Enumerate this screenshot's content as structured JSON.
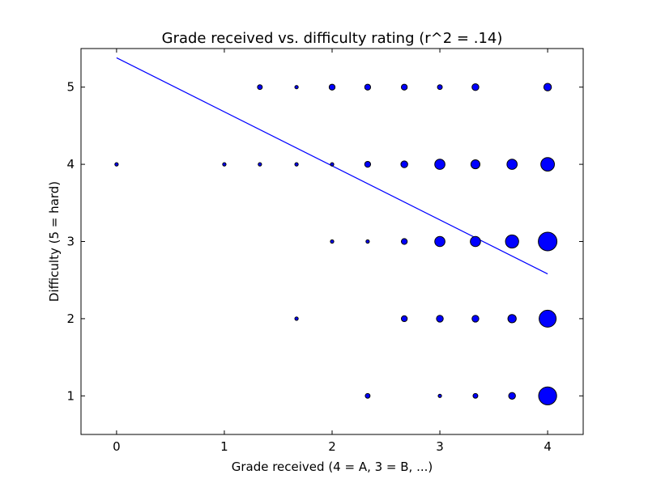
{
  "chart_data": {
    "type": "scatter",
    "title": "Grade received vs. difficulty rating (r^2 = .14)",
    "xlabel": "Grade received (4 = A, 3 = B, ...)",
    "ylabel": "Difficulty (5 = hard)",
    "xlim": [
      -0.33,
      4.33
    ],
    "ylim": [
      0.5,
      5.5
    ],
    "xticks": [
      0,
      1,
      2,
      3,
      4
    ],
    "yticks": [
      1,
      2,
      3,
      4,
      5
    ],
    "grid": false,
    "marker_color": "#0000ff",
    "line_color": "#0000ff",
    "points": [
      {
        "x": 1.33,
        "y": 5,
        "size": 2
      },
      {
        "x": 1.67,
        "y": 5,
        "size": 1
      },
      {
        "x": 2.0,
        "y": 5,
        "size": 3
      },
      {
        "x": 2.33,
        "y": 5,
        "size": 3
      },
      {
        "x": 2.67,
        "y": 5,
        "size": 3
      },
      {
        "x": 3.0,
        "y": 5,
        "size": 2
      },
      {
        "x": 3.33,
        "y": 5,
        "size": 4
      },
      {
        "x": 4.0,
        "y": 5,
        "size": 5
      },
      {
        "x": 0.0,
        "y": 4,
        "size": 1
      },
      {
        "x": 1.0,
        "y": 4,
        "size": 1
      },
      {
        "x": 1.33,
        "y": 4,
        "size": 1
      },
      {
        "x": 1.67,
        "y": 4,
        "size": 1
      },
      {
        "x": 2.0,
        "y": 4,
        "size": 1
      },
      {
        "x": 2.33,
        "y": 4,
        "size": 3
      },
      {
        "x": 2.67,
        "y": 4,
        "size": 4
      },
      {
        "x": 3.0,
        "y": 4,
        "size": 9
      },
      {
        "x": 3.33,
        "y": 4,
        "size": 7
      },
      {
        "x": 3.67,
        "y": 4,
        "size": 9
      },
      {
        "x": 4.0,
        "y": 4,
        "size": 16
      },
      {
        "x": 2.0,
        "y": 3,
        "size": 1
      },
      {
        "x": 2.33,
        "y": 3,
        "size": 1
      },
      {
        "x": 2.67,
        "y": 3,
        "size": 3
      },
      {
        "x": 3.0,
        "y": 3,
        "size": 9
      },
      {
        "x": 3.33,
        "y": 3,
        "size": 9
      },
      {
        "x": 3.67,
        "y": 3,
        "size": 15
      },
      {
        "x": 4.0,
        "y": 3,
        "size": 30
      },
      {
        "x": 1.67,
        "y": 2,
        "size": 1
      },
      {
        "x": 2.67,
        "y": 2,
        "size": 3
      },
      {
        "x": 3.0,
        "y": 2,
        "size": 4
      },
      {
        "x": 3.33,
        "y": 2,
        "size": 4
      },
      {
        "x": 3.67,
        "y": 2,
        "size": 6
      },
      {
        "x": 4.0,
        "y": 2,
        "size": 25
      },
      {
        "x": 2.33,
        "y": 1,
        "size": 2
      },
      {
        "x": 3.0,
        "y": 1,
        "size": 1
      },
      {
        "x": 3.33,
        "y": 1,
        "size": 2
      },
      {
        "x": 3.67,
        "y": 1,
        "size": 4
      },
      {
        "x": 4.0,
        "y": 1,
        "size": 28
      }
    ],
    "regression": {
      "x": [
        0.0,
        4.0
      ],
      "y": [
        5.38,
        2.58
      ]
    }
  }
}
